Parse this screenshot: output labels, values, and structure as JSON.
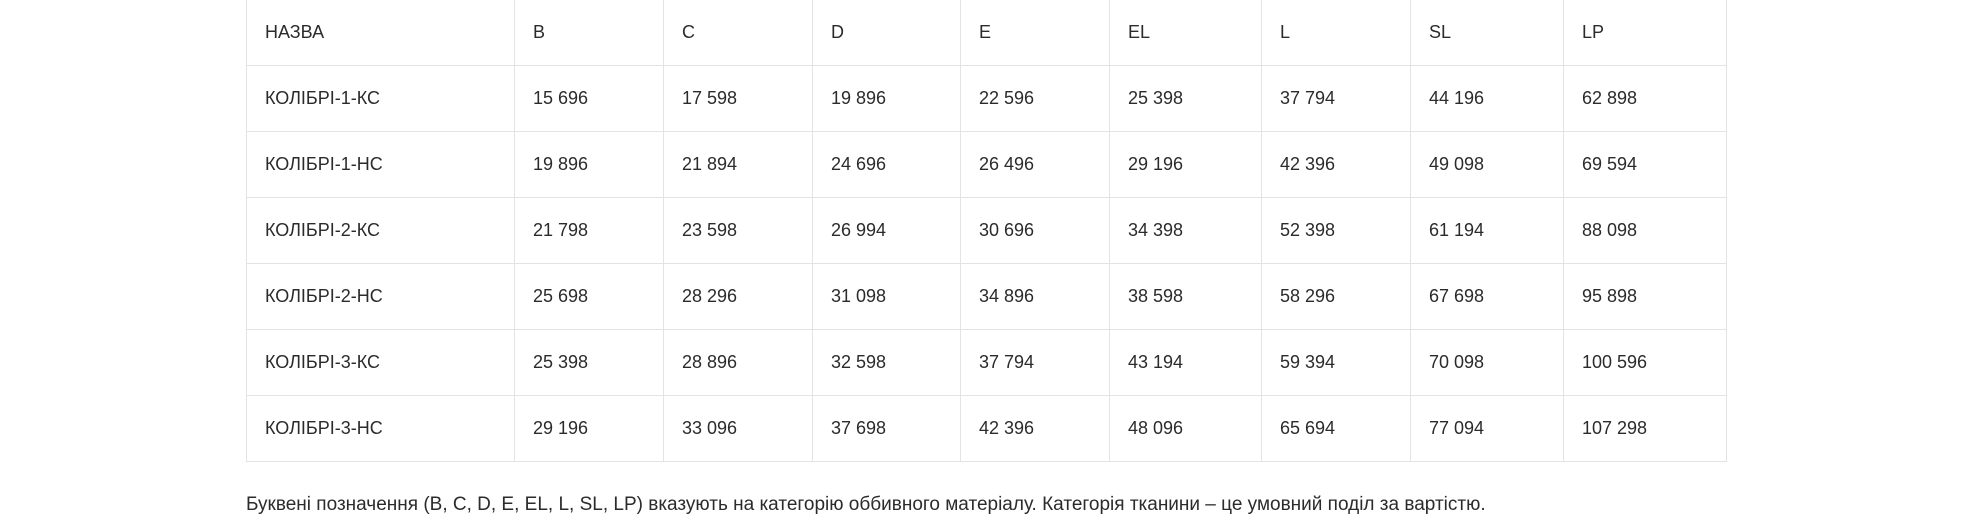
{
  "table": {
    "headers": [
      "НАЗВА",
      "B",
      "C",
      "D",
      "E",
      "EL",
      "L",
      "SL",
      "LP"
    ],
    "rows": [
      [
        "КОЛІБРІ-1-КС",
        "15 696",
        "17 598",
        "19 896",
        "22 596",
        "25 398",
        "37 794",
        "44 196",
        "62 898"
      ],
      [
        "КОЛІБРІ-1-НС",
        "19 896",
        "21 894",
        "24 696",
        "26 496",
        "29 196",
        "42 396",
        "49 098",
        "69 594"
      ],
      [
        "КОЛІБРІ-2-КС",
        "21 798",
        "23 598",
        "26 994",
        "30 696",
        "34 398",
        "52 398",
        "61 194",
        "88 098"
      ],
      [
        "КОЛІБРІ-2-НС",
        "25 698",
        "28 296",
        "31 098",
        "34 896",
        "38 598",
        "58 296",
        "67 698",
        "95 898"
      ],
      [
        "КОЛІБРІ-3-КС",
        "25 398",
        "28 896",
        "32 598",
        "37 794",
        "43 194",
        "59 394",
        "70 098",
        "100 596"
      ],
      [
        "КОЛІБРІ-3-НС",
        "29 196",
        "33 096",
        "37 698",
        "42 396",
        "48 096",
        "65 694",
        "77 094",
        "107 298"
      ]
    ]
  },
  "footnote": "Буквені позначення (B, C, D, E, EL, L, SL, LP) вказують на категорію оббивного матеріалу. Категорія тканини – це умовний поділ за вартістю."
}
